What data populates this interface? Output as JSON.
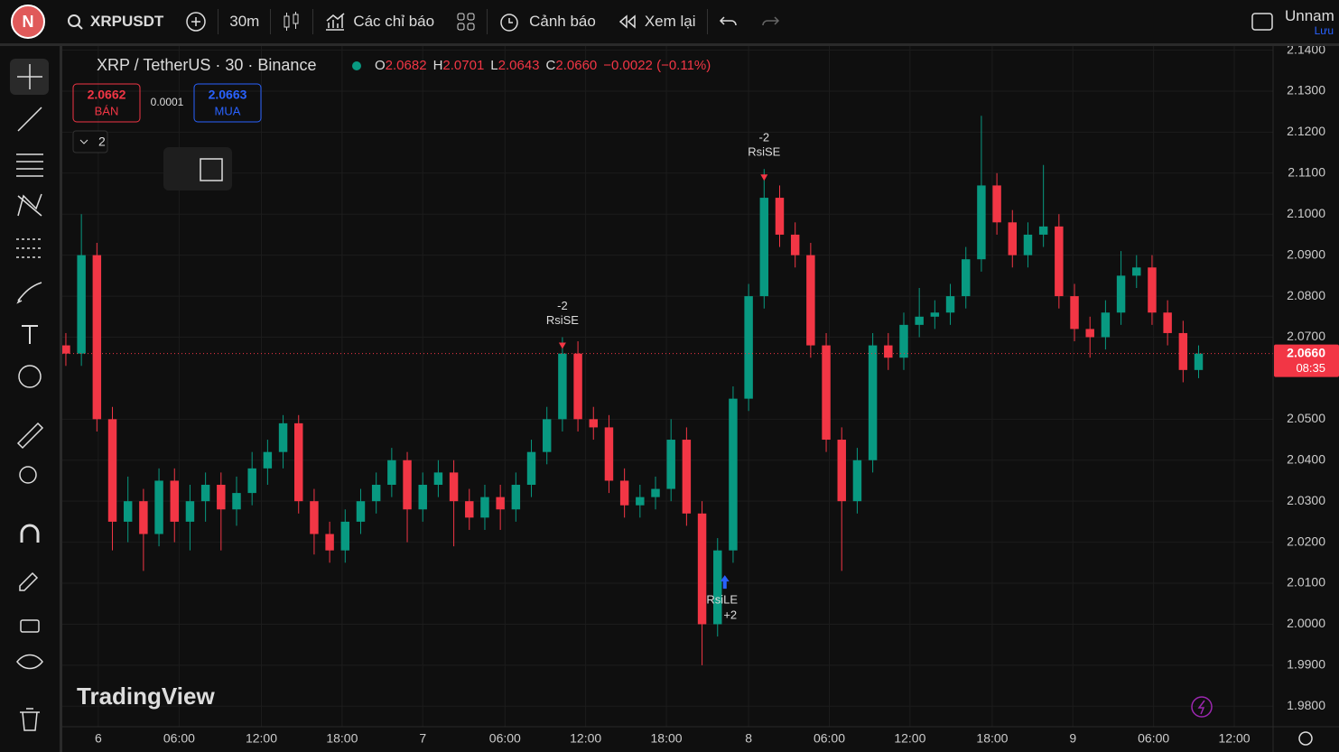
{
  "header": {
    "avatar": "N",
    "symbol": "XRPUSDT",
    "interval": "30m",
    "indicators": "Các chỉ báo",
    "alerts": "Cảnh báo",
    "replay": "Xem lại",
    "layout_name": "Unnam",
    "save": "Lưu"
  },
  "legend": {
    "title": "XRP / TetherUS · 30 · Binance",
    "o_label": "O",
    "o": "2.0682",
    "h_label": "H",
    "h": "2.0701",
    "l_label": "L",
    "l": "2.0643",
    "c_label": "C",
    "c": "2.0660",
    "change": "−0.0022 (−0.11%)"
  },
  "trade": {
    "sell_price": "2.0662",
    "sell": "BÁN",
    "spread": "0.0001",
    "buy_price": "2.0663",
    "buy": "MUA",
    "indicator_count": "2"
  },
  "watermark": "TradingView",
  "chart_data": {
    "type": "candlestick",
    "up_color": "#089981",
    "down_color": "#f23645",
    "candles": [
      [
        2.068,
        2.071,
        2.063,
        2.066
      ],
      [
        2.066,
        2.1,
        2.063,
        2.09
      ],
      [
        2.09,
        2.093,
        2.047,
        2.05
      ],
      [
        2.05,
        2.053,
        2.018,
        2.025
      ],
      [
        2.025,
        2.036,
        2.02,
        2.03
      ],
      [
        2.03,
        2.033,
        2.013,
        2.022
      ],
      [
        2.022,
        2.038,
        2.019,
        2.035
      ],
      [
        2.035,
        2.038,
        2.02,
        2.025
      ],
      [
        2.025,
        2.034,
        2.018,
        2.03
      ],
      [
        2.03,
        2.037,
        2.025,
        2.034
      ],
      [
        2.034,
        2.037,
        2.018,
        2.028
      ],
      [
        2.028,
        2.036,
        2.024,
        2.032
      ],
      [
        2.032,
        2.042,
        2.029,
        2.038
      ],
      [
        2.038,
        2.045,
        2.034,
        2.042
      ],
      [
        2.042,
        2.051,
        2.038,
        2.049
      ],
      [
        2.049,
        2.051,
        2.027,
        2.03
      ],
      [
        2.03,
        2.033,
        2.017,
        2.022
      ],
      [
        2.022,
        2.025,
        2.015,
        2.018
      ],
      [
        2.018,
        2.028,
        2.015,
        2.025
      ],
      [
        2.025,
        2.033,
        2.022,
        2.03
      ],
      [
        2.03,
        2.037,
        2.027,
        2.034
      ],
      [
        2.034,
        2.043,
        2.031,
        2.04
      ],
      [
        2.04,
        2.042,
        2.02,
        2.028
      ],
      [
        2.028,
        2.037,
        2.025,
        2.034
      ],
      [
        2.034,
        2.04,
        2.031,
        2.037
      ],
      [
        2.037,
        2.04,
        2.019,
        2.03
      ],
      [
        2.03,
        2.033,
        2.023,
        2.026
      ],
      [
        2.026,
        2.034,
        2.023,
        2.031
      ],
      [
        2.031,
        2.034,
        2.023,
        2.028
      ],
      [
        2.028,
        2.037,
        2.025,
        2.034
      ],
      [
        2.034,
        2.045,
        2.031,
        2.042
      ],
      [
        2.042,
        2.053,
        2.039,
        2.05
      ],
      [
        2.05,
        2.07,
        2.047,
        2.066
      ],
      [
        2.066,
        2.069,
        2.047,
        2.05
      ],
      [
        2.05,
        2.053,
        2.045,
        2.048
      ],
      [
        2.048,
        2.051,
        2.032,
        2.035
      ],
      [
        2.035,
        2.038,
        2.026,
        2.029
      ],
      [
        2.029,
        2.034,
        2.026,
        2.031
      ],
      [
        2.031,
        2.036,
        2.028,
        2.033
      ],
      [
        2.033,
        2.05,
        2.03,
        2.045
      ],
      [
        2.045,
        2.048,
        2.024,
        2.027
      ],
      [
        2.027,
        2.03,
        1.99,
        2.0
      ],
      [
        2.0,
        2.021,
        1.997,
        2.018
      ],
      [
        2.018,
        2.058,
        2.015,
        2.055
      ],
      [
        2.055,
        2.083,
        2.052,
        2.08
      ],
      [
        2.08,
        2.111,
        2.077,
        2.104
      ],
      [
        2.104,
        2.107,
        2.092,
        2.095
      ],
      [
        2.095,
        2.098,
        2.087,
        2.09
      ],
      [
        2.09,
        2.093,
        2.065,
        2.068
      ],
      [
        2.068,
        2.071,
        2.042,
        2.045
      ],
      [
        2.045,
        2.048,
        2.013,
        2.03
      ],
      [
        2.03,
        2.043,
        2.027,
        2.04
      ],
      [
        2.04,
        2.071,
        2.037,
        2.068
      ],
      [
        2.068,
        2.071,
        2.062,
        2.065
      ],
      [
        2.065,
        2.076,
        2.062,
        2.073
      ],
      [
        2.073,
        2.082,
        2.07,
        2.075
      ],
      [
        2.075,
        2.079,
        2.072,
        2.076
      ],
      [
        2.076,
        2.083,
        2.073,
        2.08
      ],
      [
        2.08,
        2.092,
        2.077,
        2.089
      ],
      [
        2.089,
        2.124,
        2.086,
        2.107
      ],
      [
        2.107,
        2.11,
        2.095,
        2.098
      ],
      [
        2.098,
        2.101,
        2.087,
        2.09
      ],
      [
        2.09,
        2.098,
        2.087,
        2.095
      ],
      [
        2.095,
        2.112,
        2.092,
        2.097
      ],
      [
        2.097,
        2.1,
        2.077,
        2.08
      ],
      [
        2.08,
        2.083,
        2.069,
        2.072
      ],
      [
        2.072,
        2.075,
        2.065,
        2.07
      ],
      [
        2.07,
        2.079,
        2.067,
        2.076
      ],
      [
        2.076,
        2.091,
        2.073,
        2.085
      ],
      [
        2.085,
        2.09,
        2.082,
        2.087
      ],
      [
        2.087,
        2.09,
        2.073,
        2.076
      ],
      [
        2.076,
        2.079,
        2.068,
        2.071
      ],
      [
        2.071,
        2.074,
        2.059,
        2.062
      ],
      [
        2.062,
        2.068,
        2.06,
        2.066
      ]
    ],
    "xlim": [
      -0.23,
      77.8
    ],
    "ylim": [
      1.975,
      2.141
    ],
    "xticks": [
      {
        "value": 2.09,
        "label": "6"
      },
      {
        "value": 7.3,
        "label": "06:00"
      },
      {
        "value": 12.6,
        "label": "12:00"
      },
      {
        "value": 17.8,
        "label": "18:00"
      },
      {
        "value": 23.0,
        "label": "7"
      },
      {
        "value": 28.3,
        "label": "06:00"
      },
      {
        "value": 33.5,
        "label": "12:00"
      },
      {
        "value": 38.7,
        "label": "18:00"
      },
      {
        "value": 44.0,
        "label": "8"
      },
      {
        "value": 49.2,
        "label": "06:00"
      },
      {
        "value": 54.4,
        "label": "12:00"
      },
      {
        "value": 59.7,
        "label": "18:00"
      },
      {
        "value": 64.9,
        "label": "9"
      },
      {
        "value": 70.1,
        "label": "06:00"
      },
      {
        "value": 75.3,
        "label": "12:00"
      }
    ],
    "yticks": [
      {
        "value": 1.98,
        "label": "1.9800"
      },
      {
        "value": 1.99,
        "label": "1.9900"
      },
      {
        "value": 2.0,
        "label": "2.0000"
      },
      {
        "value": 2.01,
        "label": "2.0100"
      },
      {
        "value": 2.02,
        "label": "2.0200"
      },
      {
        "value": 2.03,
        "label": "2.0300"
      },
      {
        "value": 2.04,
        "label": "2.0400"
      },
      {
        "value": 2.05,
        "label": "2.0500"
      },
      {
        "value": 2.07,
        "label": "2.0700"
      },
      {
        "value": 2.08,
        "label": "2.0800"
      },
      {
        "value": 2.09,
        "label": "2.0900"
      },
      {
        "value": 2.1,
        "label": "2.1000"
      },
      {
        "value": 2.11,
        "label": "2.1100"
      },
      {
        "value": 2.12,
        "label": "2.1200"
      },
      {
        "value": 2.13,
        "label": "2.1300"
      },
      {
        "value": 2.14,
        "label": "2.1400"
      }
    ],
    "grid": true,
    "last_price": {
      "value": 2.066,
      "label": "2.0660"
    },
    "countdown": "08:35",
    "signals": [
      {
        "index": 32,
        "side": "sell",
        "qty": "-2",
        "label": "RsiSE"
      },
      {
        "index": 45,
        "side": "sell",
        "qty": "-2",
        "label": "RsiSE"
      },
      {
        "index": 42,
        "side": "buy",
        "qty": "+2",
        "label": "RsiLE"
      }
    ]
  }
}
